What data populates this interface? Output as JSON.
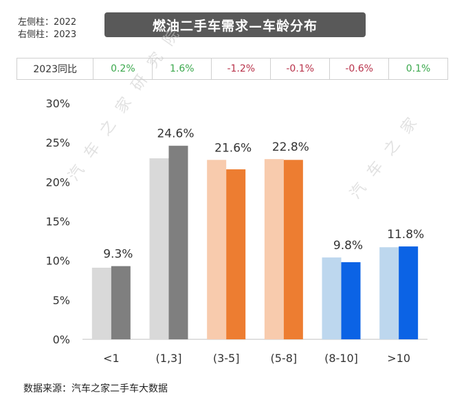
{
  "legend": {
    "left": "左侧柱：2022",
    "right": "右侧柱：2023"
  },
  "title": "燃油二手车需求—车龄分布",
  "yoy": {
    "label": "2023同比",
    "values": [
      "0.2%",
      "1.6%",
      "-1.2%",
      "-0.1%",
      "-0.6%",
      "0.1%"
    ]
  },
  "watermarks": [
    "汽车之家研究院",
    "汽车之家"
  ],
  "source": "数据来源：汽车之家二手车大数据",
  "chart_data": {
    "type": "bar",
    "categories": [
      "<1",
      "(1,3]",
      "(3-5]",
      "(5-8]",
      "(8-10]",
      ">10"
    ],
    "series": [
      {
        "name": "2022",
        "values": [
          9.1,
          23.0,
          22.8,
          22.9,
          10.4,
          11.7
        ]
      },
      {
        "name": "2023",
        "values": [
          9.3,
          24.6,
          21.6,
          22.8,
          9.8,
          11.8
        ]
      }
    ],
    "data_labels": [
      "9.3%",
      "24.6%",
      "21.6%",
      "22.8%",
      "9.8%",
      "11.8%"
    ],
    "yticks": [
      "0%",
      "5%",
      "10%",
      "15%",
      "20%",
      "25%",
      "30%"
    ],
    "ylim": [
      0,
      30
    ],
    "colors_2022": [
      "#d9d9d9",
      "#d9d9d9",
      "#f8cbad",
      "#f8cbad",
      "#bdd7ee",
      "#bdd7ee"
    ],
    "colors_2023": [
      "#7f7f7f",
      "#7f7f7f",
      "#ed7d31",
      "#ed7d31",
      "#0b63e5",
      "#0b63e5"
    ]
  }
}
